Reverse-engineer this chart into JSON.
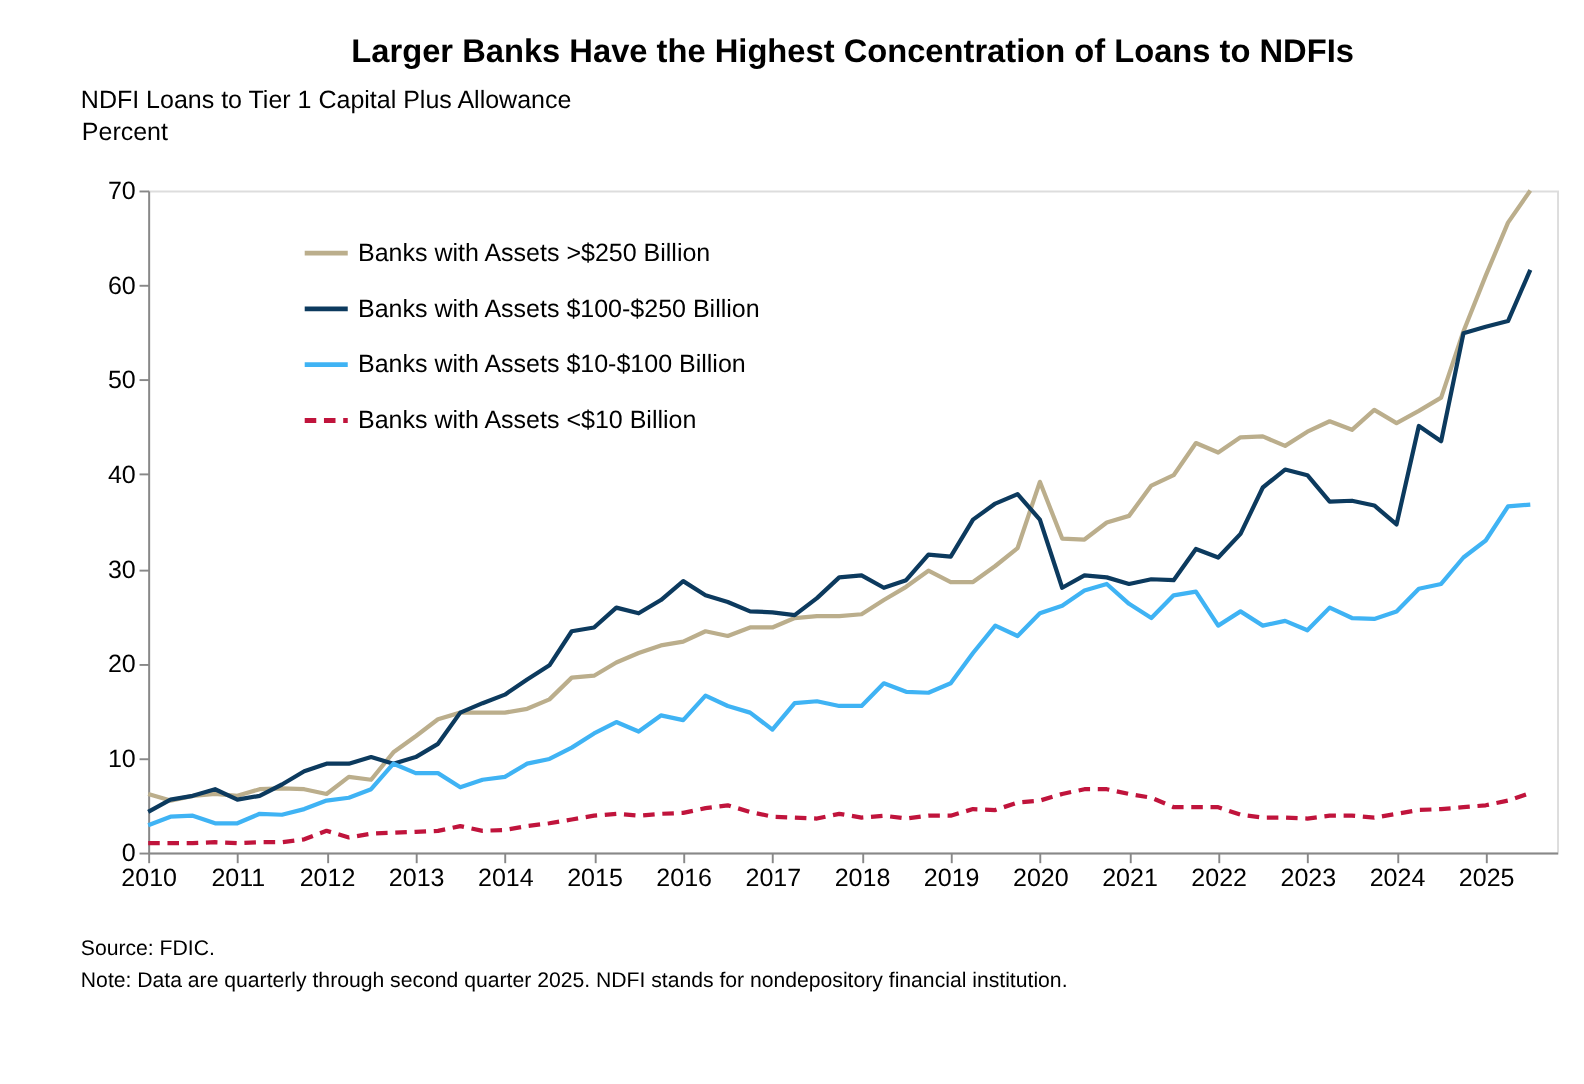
{
  "chart_data": {
    "type": "line",
    "title": "Larger Banks Have the Highest Concentration of Loans to NDFIs",
    "subtitle": "NDFI Loans to Tier 1 Capital Plus Allowance",
    "ylabel": "Percent",
    "annotations": [
      "Source: FDIC.",
      "Note: Data are quarterly through second quarter 2025. NDFI stands for nondepository financial institution."
    ],
    "x": [
      2010.0,
      2010.25,
      2010.5,
      2010.75,
      2011.0,
      2011.25,
      2011.5,
      2011.75,
      2012.0,
      2012.25,
      2012.5,
      2012.75,
      2013.0,
      2013.25,
      2013.5,
      2013.75,
      2014.0,
      2014.25,
      2014.5,
      2014.75,
      2015.0,
      2015.25,
      2015.5,
      2015.75,
      2016.0,
      2016.25,
      2016.5,
      2016.75,
      2017.0,
      2017.25,
      2017.5,
      2017.75,
      2018.0,
      2018.25,
      2018.5,
      2018.75,
      2019.0,
      2019.25,
      2019.5,
      2019.75,
      2020.0,
      2020.25,
      2020.5,
      2020.75,
      2021.0,
      2021.25,
      2021.5,
      2021.75,
      2022.0,
      2022.25,
      2022.5,
      2022.75,
      2023.0,
      2023.25,
      2023.5,
      2023.75,
      2024.0,
      2024.25,
      2024.5,
      2024.75,
      2025.0,
      2025.25,
      2025.5
    ],
    "series": [
      {
        "name": "Banks with Assets >$250 Billion",
        "color": "#bbae8c",
        "line_style": "solid",
        "values": [
          6.2,
          5.5,
          6.0,
          6.2,
          6.0,
          6.7,
          6.8,
          6.7,
          6.2,
          8.0,
          7.7,
          10.6,
          12.3,
          14.1,
          14.8,
          14.8,
          14.8,
          15.2,
          16.2,
          18.5,
          18.7,
          20.1,
          21.1,
          21.9,
          22.3,
          23.4,
          22.9,
          23.8,
          23.8,
          24.8,
          25.0,
          25.0,
          25.2,
          26.7,
          28.1,
          29.8,
          28.6,
          28.6,
          30.3,
          32.2,
          39.2,
          33.2,
          33.1,
          34.9,
          35.6,
          38.8,
          39.9,
          43.3,
          42.3,
          43.9,
          44.0,
          43.0,
          44.5,
          45.6,
          44.7,
          46.8,
          45.4,
          46.7,
          48.1,
          55.1,
          61.0,
          66.6,
          70.0
        ]
      },
      {
        "name": "Banks with Assets $100-$250 Billion",
        "color": "#0c3a5e",
        "line_style": "solid",
        "values": [
          4.3,
          5.6,
          6.0,
          6.7,
          5.6,
          6.0,
          7.2,
          8.6,
          9.4,
          9.4,
          10.1,
          9.4,
          10.1,
          11.5,
          14.8,
          15.8,
          16.7,
          18.3,
          19.8,
          23.4,
          23.8,
          25.9,
          25.3,
          26.7,
          28.7,
          27.2,
          26.5,
          25.5,
          25.4,
          25.1,
          26.9,
          29.1,
          29.3,
          28.0,
          28.8,
          31.5,
          31.3,
          35.2,
          36.9,
          37.9,
          35.2,
          28.0,
          29.3,
          29.1,
          28.4,
          28.9,
          28.8,
          32.1,
          31.2,
          33.7,
          38.6,
          40.5,
          39.9,
          37.1,
          37.2,
          36.7,
          34.7,
          45.1,
          43.5,
          54.9,
          55.6,
          56.2,
          61.6
        ]
      },
      {
        "name": "Banks with Assets $10-$100 Billion",
        "color": "#3fb3f4",
        "line_style": "solid",
        "values": [
          2.9,
          3.8,
          3.9,
          3.1,
          3.1,
          4.1,
          4.0,
          4.6,
          5.5,
          5.8,
          6.7,
          9.4,
          8.4,
          8.4,
          6.9,
          7.7,
          8.0,
          9.4,
          9.9,
          11.1,
          12.6,
          13.8,
          12.8,
          14.5,
          14.0,
          16.6,
          15.5,
          14.8,
          13.0,
          15.8,
          16.0,
          15.5,
          15.5,
          17.9,
          17.0,
          16.9,
          17.9,
          21.1,
          24.0,
          22.9,
          25.3,
          26.1,
          27.7,
          28.4,
          26.3,
          24.8,
          27.2,
          27.6,
          24.0,
          25.5,
          24.0,
          24.5,
          23.5,
          25.9,
          24.8,
          24.7,
          25.5,
          27.9,
          28.4,
          31.2,
          33.0,
          36.6,
          36.8
        ]
      },
      {
        "name": "Banks with Assets <$10 Billion",
        "color": "#c0143c",
        "line_style": "dashed",
        "values": [
          1.0,
          1.0,
          1.0,
          1.1,
          1.0,
          1.1,
          1.1,
          1.4,
          2.3,
          1.6,
          2.0,
          2.1,
          2.2,
          2.3,
          2.8,
          2.3,
          2.4,
          2.8,
          3.1,
          3.5,
          3.9,
          4.1,
          3.9,
          4.1,
          4.2,
          4.7,
          5.0,
          4.3,
          3.8,
          3.7,
          3.6,
          4.1,
          3.7,
          3.9,
          3.6,
          3.9,
          3.9,
          4.6,
          4.5,
          5.3,
          5.5,
          6.2,
          6.7,
          6.7,
          6.2,
          5.8,
          4.8,
          4.8,
          4.8,
          4.0,
          3.7,
          3.7,
          3.6,
          3.9,
          3.9,
          3.7,
          4.1,
          4.5,
          4.6,
          4.8,
          5.0,
          5.5,
          6.3
        ]
      }
    ],
    "xlim": [
      2010,
      2025.8
    ],
    "xticks": [
      2010,
      2011,
      2012,
      2013,
      2014,
      2015,
      2016,
      2017,
      2018,
      2019,
      2020,
      2021,
      2022,
      2023,
      2024,
      2025
    ],
    "ylim": [
      0,
      70
    ],
    "yticks": [
      0,
      10,
      20,
      30,
      40,
      50,
      60,
      70
    ],
    "grid": false,
    "legend": "top left",
    "marker": "none"
  }
}
